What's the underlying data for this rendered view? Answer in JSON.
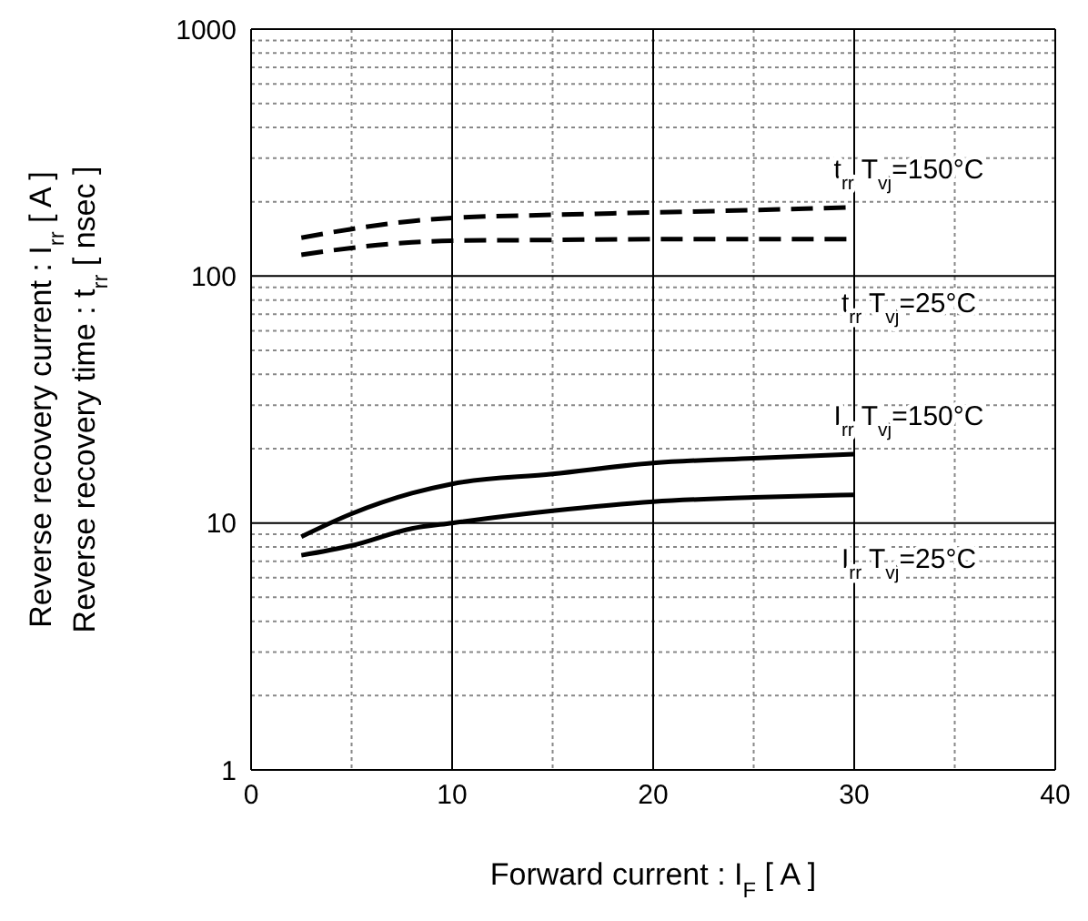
{
  "chart_data": {
    "type": "line",
    "xlabel": "Forward current : I$_{F}$ [ A ]",
    "ylabel": "Reverse recovery current : I$_{rr}$ [ A ]\nReverse recovery time : t$_{rr}$ [ nsec ]",
    "xlim": [
      0,
      40
    ],
    "xticks": [
      0,
      10,
      20,
      30,
      40
    ],
    "ylim": [
      1,
      1000
    ],
    "yticks": [
      1,
      10,
      100,
      1000
    ],
    "log": "y",
    "grid": true,
    "marker": "none",
    "series": [
      {
        "color": "#000000",
        "line_style": "dashed",
        "x": [
          2.5,
          5,
          8,
          10,
          15,
          20,
          25,
          30
        ],
        "values": [
          143,
          155,
          167,
          172,
          177,
          181,
          185,
          190
        ]
      },
      {
        "color": "#000000",
        "line_style": "dashed",
        "x": [
          2.5,
          5,
          8,
          10,
          15,
          20,
          25,
          30
        ],
        "values": [
          122,
          130,
          137,
          139,
          140,
          141,
          141,
          141
        ]
      },
      {
        "color": "#000000",
        "line_style": "solid",
        "x": [
          2.5,
          5,
          8,
          10,
          15,
          20,
          25,
          30
        ],
        "values": [
          8.8,
          10.9,
          13.2,
          14.4,
          15.8,
          17.5,
          18.3,
          19
        ]
      },
      {
        "color": "#000000",
        "line_style": "solid",
        "x": [
          2.5,
          5,
          8,
          10,
          15,
          20,
          25,
          30
        ],
        "values": [
          7.4,
          8.1,
          9.5,
          10,
          11.2,
          12.2,
          12.7,
          13
        ]
      }
    ],
    "annotations": [
      "t$_{rr}$ T$_{vj}$=150°C",
      "t$_{rr}$ T$_{vj}$=25°C",
      "I$_{rr}$ T$_{vj}$=150°C",
      "I$_{rr}$ T$_{vj}$=25°C"
    ]
  }
}
